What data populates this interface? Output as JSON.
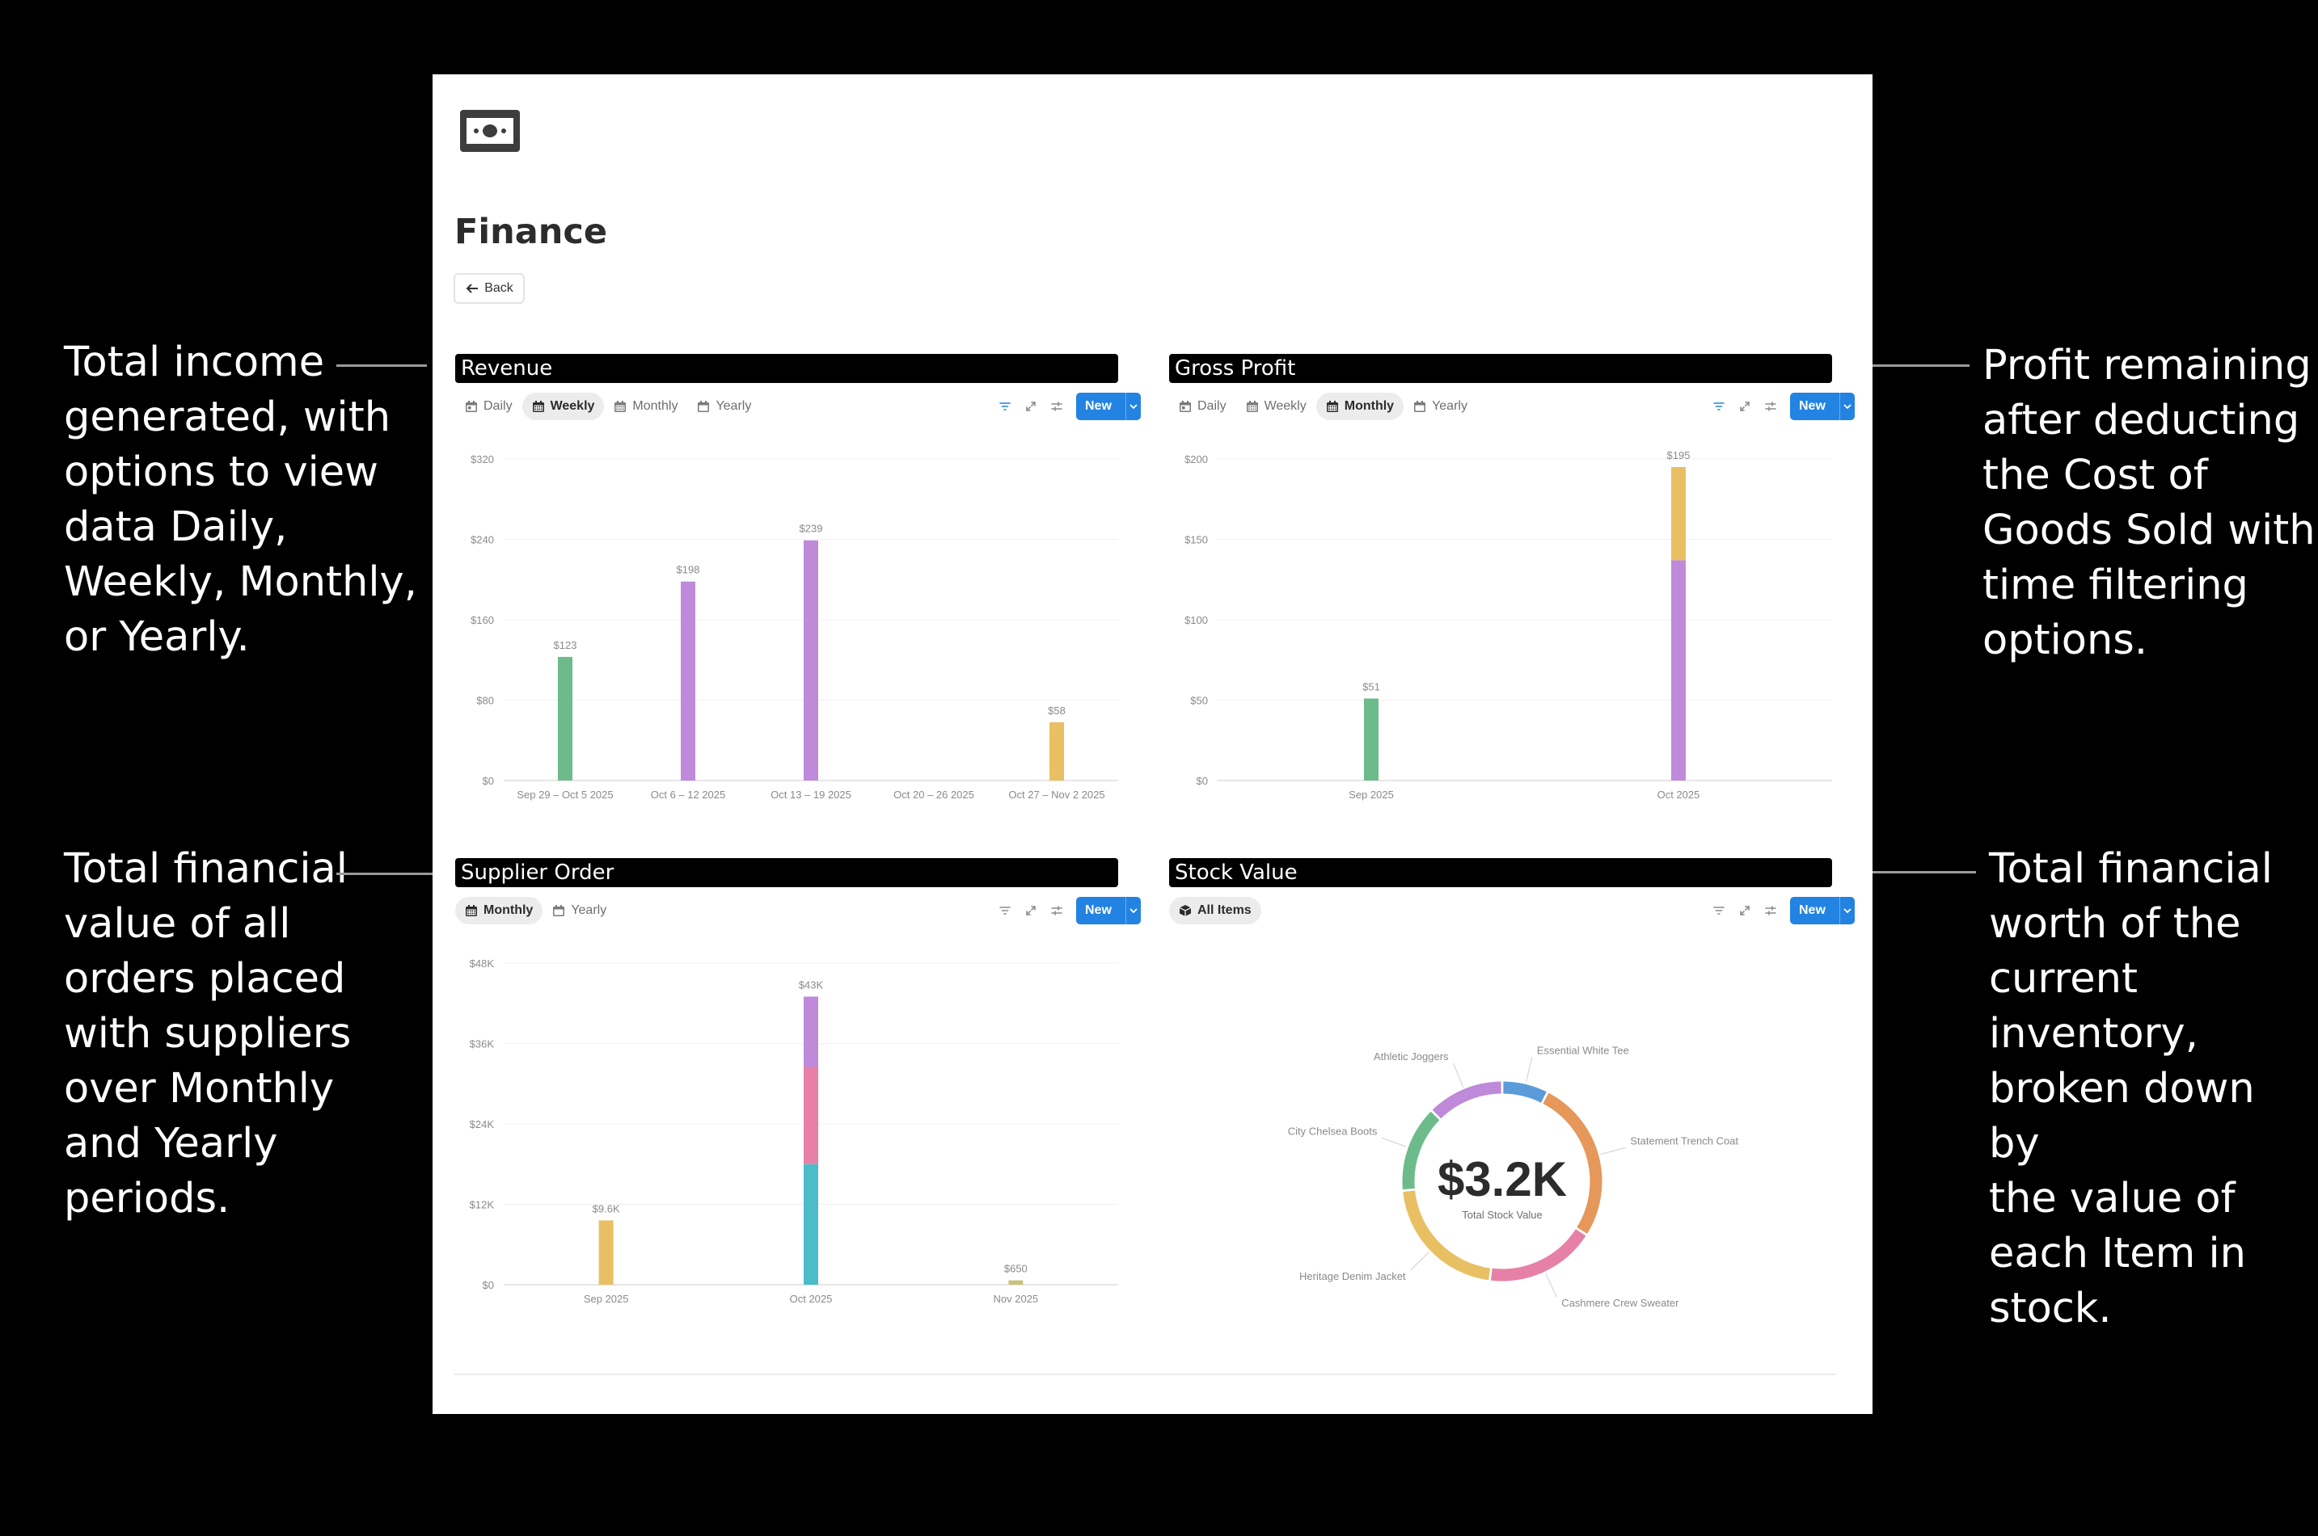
{
  "annotations": {
    "revenue": [
      "Total income",
      "generated, with",
      "options to view",
      "data Daily,",
      "Weekly, Monthly,",
      "or Yearly."
    ],
    "gross_profit": [
      "Profit remaining",
      "after deducting",
      "the Cost of",
      "Goods Sold with",
      "time filtering",
      "options."
    ],
    "supplier_order": [
      "Total financial",
      "value of all",
      "orders placed",
      "with suppliers",
      "over Monthly",
      "and Yearly",
      "periods."
    ],
    "stock_value": [
      "Total financial",
      "worth of the",
      "current",
      "inventory,",
      "broken down by",
      "the value of",
      "each Item in",
      "stock."
    ]
  },
  "page": {
    "title": "Finance",
    "back_label": "Back",
    "logo_icon": "banknote-icon"
  },
  "toolbar": {
    "new_label": "New",
    "accent": "#2383e2"
  },
  "panels": {
    "revenue": {
      "title": "Revenue",
      "tabs": [
        {
          "label": "Daily",
          "icon": "calendar-day-icon",
          "active": false
        },
        {
          "label": "Weekly",
          "icon": "calendar-week-icon",
          "active": true
        },
        {
          "label": "Monthly",
          "icon": "calendar-month-icon",
          "active": false
        },
        {
          "label": "Yearly",
          "icon": "calendar-year-icon",
          "active": false
        }
      ]
    },
    "gross_profit": {
      "title": "Gross Profit",
      "tabs": [
        {
          "label": "Daily",
          "icon": "calendar-day-icon",
          "active": false
        },
        {
          "label": "Weekly",
          "icon": "calendar-week-icon",
          "active": false
        },
        {
          "label": "Monthly",
          "icon": "calendar-month-icon",
          "active": true
        },
        {
          "label": "Yearly",
          "icon": "calendar-year-icon",
          "active": false
        }
      ]
    },
    "supplier_order": {
      "title": "Supplier Order",
      "tabs": [
        {
          "label": "Monthly",
          "icon": "calendar-month-icon",
          "active": true
        },
        {
          "label": "Yearly",
          "icon": "calendar-year-icon",
          "active": false
        }
      ]
    },
    "stock_value": {
      "title": "Stock Value",
      "tabs": [
        {
          "label": "All Items",
          "icon": "box-icon",
          "active": true
        }
      ]
    }
  },
  "chart_data": [
    {
      "id": "revenue",
      "type": "bar",
      "categories": [
        "Sep 29 – Oct 5 2025",
        "Oct 6 – 12 2025",
        "Oct 13 – 19 2025",
        "Oct 20 – 26 2025",
        "Oct 27 – Nov 2 2025"
      ],
      "values": [
        123,
        198,
        239,
        0,
        58
      ],
      "data_labels": [
        "$123",
        "$198",
        "$239",
        "",
        "$58"
      ],
      "colors": [
        "#6dbb8a",
        "#bf8ad9",
        "#bf8ad9",
        "#bf8ad9",
        "#e8c063"
      ],
      "yticks": [
        "$0",
        "$80",
        "$160",
        "$240",
        "$320"
      ],
      "ylim": [
        0,
        320
      ],
      "grid": true
    },
    {
      "id": "gross_profit",
      "type": "bar",
      "stacked": true,
      "categories": [
        "Sep 2025",
        "Oct 2025"
      ],
      "stacks": [
        [
          {
            "value": 51,
            "color": "#6dbb8a"
          }
        ],
        [
          {
            "value": 137,
            "color": "#bf8ad9"
          },
          {
            "value": 58,
            "color": "#e8c063"
          }
        ]
      ],
      "data_labels": [
        "$51",
        "$195"
      ],
      "yticks": [
        "$0",
        "$50",
        "$100",
        "$150",
        "$200"
      ],
      "ylim": [
        0,
        200
      ],
      "grid": true
    },
    {
      "id": "supplier_order",
      "type": "bar",
      "stacked": true,
      "categories": [
        "Sep 2025",
        "Oct 2025",
        "Nov 2025"
      ],
      "stacks": [
        [
          {
            "value": 9.6,
            "color": "#e8c063"
          }
        ],
        [
          {
            "value": 18,
            "color": "#4bbcc8"
          },
          {
            "value": 14.5,
            "color": "#e680a6"
          },
          {
            "value": 10.5,
            "color": "#bf8ad9"
          }
        ],
        [
          {
            "value": 0.65,
            "color": "#c9c27a"
          }
        ]
      ],
      "data_labels": [
        "$9.6K",
        "$43K",
        "$650"
      ],
      "yticks": [
        "$0",
        "$12K",
        "$24K",
        "$36K",
        "$48K"
      ],
      "ylim": [
        0,
        48
      ],
      "grid": true
    },
    {
      "id": "stock_value",
      "type": "pie",
      "center_value": "$3.2K",
      "center_label": "Total Stock Value",
      "slices": [
        {
          "label": "Essential White Tee",
          "value": 0.075,
          "color": "#5b9bd9"
        },
        {
          "label": "Statement Trench Coat",
          "value": 0.265,
          "color": "#e6975a"
        },
        {
          "label": "Cashmere Crew Sweater",
          "value": 0.18,
          "color": "#e680a6"
        },
        {
          "label": "Heritage Denim Jacket",
          "value": 0.215,
          "color": "#e8c063"
        },
        {
          "label": "City Chelsea Boots",
          "value": 0.14,
          "color": "#6dbb8a"
        },
        {
          "label": "Athletic Joggers",
          "value": 0.125,
          "color": "#bf8ad9"
        }
      ]
    }
  ]
}
